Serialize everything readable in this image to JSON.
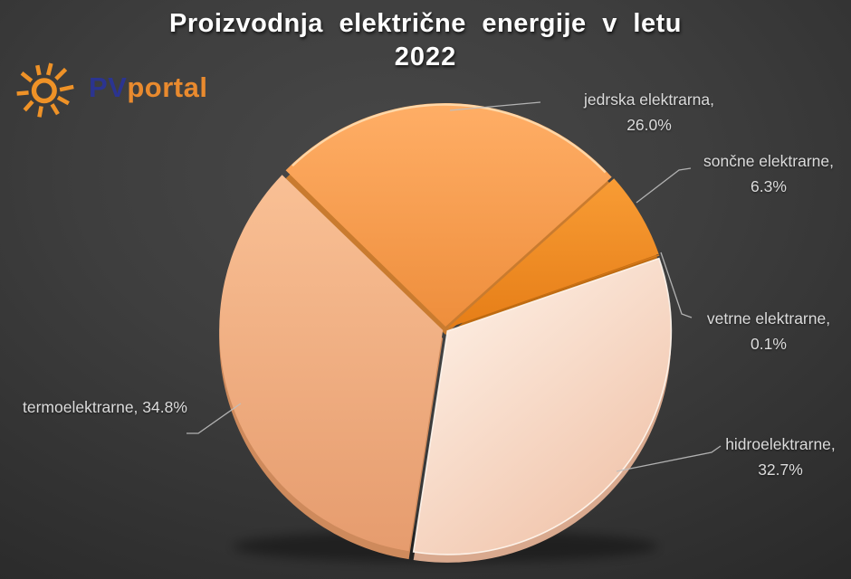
{
  "title": {
    "line1": "Proizvodnja  električne  energije  v letu",
    "line2": "2022"
  },
  "logo": {
    "pv": "PV",
    "portal": "portal",
    "pv_color": "#2b3490",
    "portal_color": "#e98a2e",
    "sun_color": "#ef9227"
  },
  "background_color": "#3e3e3e",
  "label_color": "#dcdcdc",
  "leader_line_color": "#bfbfbf",
  "chart_data": {
    "type": "pie",
    "title": "Proizvodnja električne energije v letu 2022",
    "legend_position": "callout-labels",
    "start_angle_deg": -45.6,
    "slices": [
      {
        "label": "jedrska elektrarna",
        "value": 26.0,
        "pct_text": "26.0%",
        "callout": {
          "line1": "jedrska elektrarna,",
          "line2": "26.0%"
        },
        "gradient": {
          "from": "#ffae66",
          "to": "#ee8e3c"
        },
        "depth_color": "#c97b2f"
      },
      {
        "label": "sončne elektrarne",
        "value": 6.3,
        "pct_text": "6.3%",
        "callout": {
          "line1": "sončne elektrarne,",
          "line2": "6.3%"
        },
        "gradient": {
          "from": "#f89c35",
          "to": "#e67e17"
        },
        "depth_color": "#bd6a10"
      },
      {
        "label": "vetrne elektrarne",
        "value": 0.1,
        "pct_text": "0.1%",
        "callout": {
          "line1": "vetrne elektrarne,",
          "line2": "0.1%"
        },
        "gradient": {
          "from": "#d97a1a",
          "to": "#c2690f"
        },
        "depth_color": "#a85c0d"
      },
      {
        "label": "hidroelektrarne",
        "value": 32.7,
        "pct_text": "32.7%",
        "callout": {
          "line1": "hidroelektrarne,",
          "line2": "32.7%"
        },
        "gradient": {
          "from": "#fff5ec",
          "to": "#f0c2a8"
        },
        "depth_color": "#d9a98e"
      },
      {
        "label": "termoelektrarne",
        "value": 34.8,
        "pct_text": "34.8%",
        "callout": {
          "line1": "termoelektrarne, 34.8%",
          "line2": ""
        },
        "gradient": {
          "from": "#f9c095",
          "to": "#e69c6e"
        },
        "depth_color": "#ce8a5c"
      }
    ]
  }
}
